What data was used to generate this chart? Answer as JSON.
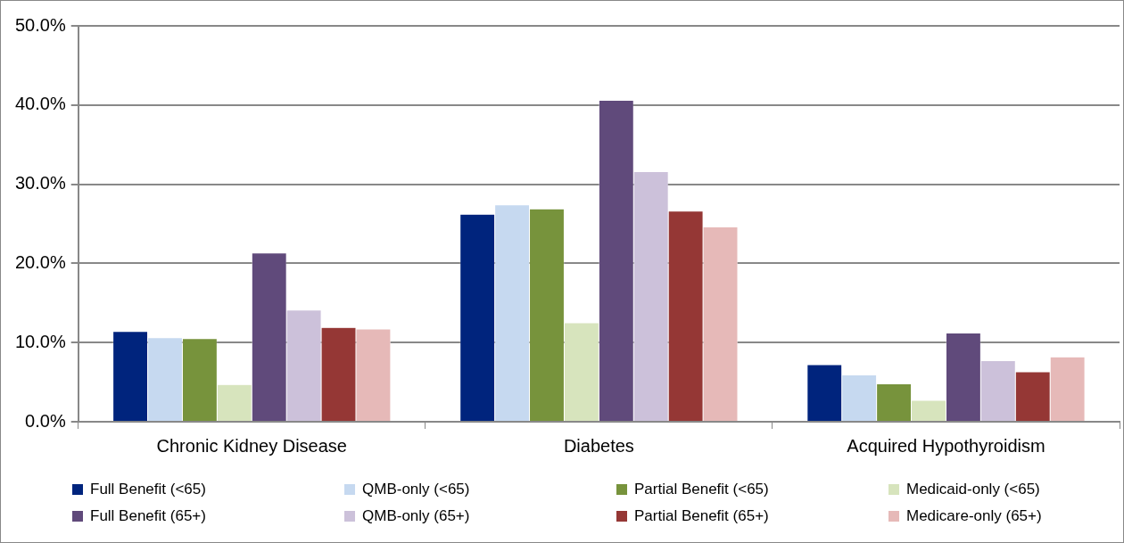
{
  "chart_data": {
    "type": "bar",
    "categories": [
      "Chronic Kidney Disease",
      "Diabetes",
      "Acquired Hypothyroidism"
    ],
    "series": [
      {
        "name": "Full Benefit (<65)",
        "color": "#00247d",
        "values": [
          11.4,
          26.2,
          7.2
        ]
      },
      {
        "name": "QMB-only (<65)",
        "color": "#c6d9f0",
        "values": [
          10.6,
          27.4,
          5.9
        ]
      },
      {
        "name": "Partial Benefit (<65)",
        "color": "#77933c",
        "values": [
          10.5,
          26.9,
          4.8
        ]
      },
      {
        "name": "Medicaid-only (<65)",
        "color": "#d7e4bd",
        "values": [
          4.7,
          12.5,
          2.7
        ]
      },
      {
        "name": "Full Benefit (65+)",
        "color": "#604a7b",
        "values": [
          21.3,
          40.6,
          11.2
        ]
      },
      {
        "name": "QMB-only (65+)",
        "color": "#ccc1da",
        "values": [
          14.1,
          31.6,
          7.7
        ]
      },
      {
        "name": "Partial Benefit (65+)",
        "color": "#953735",
        "values": [
          11.9,
          26.6,
          6.3
        ]
      },
      {
        "name": "Medicare-only (65+)",
        "color": "#e6b9b8",
        "values": [
          11.7,
          24.6,
          8.2
        ]
      }
    ],
    "ylim": [
      0,
      50
    ],
    "yticks": [
      {
        "value": 0,
        "label": "0.0%"
      },
      {
        "value": 10,
        "label": "10.0%"
      },
      {
        "value": 20,
        "label": "20.0%"
      },
      {
        "value": 30,
        "label": "30.0%"
      },
      {
        "value": 40,
        "label": "40.0%"
      },
      {
        "value": 50,
        "label": "50.0%"
      }
    ],
    "grid": "y",
    "legend": "bottom"
  }
}
